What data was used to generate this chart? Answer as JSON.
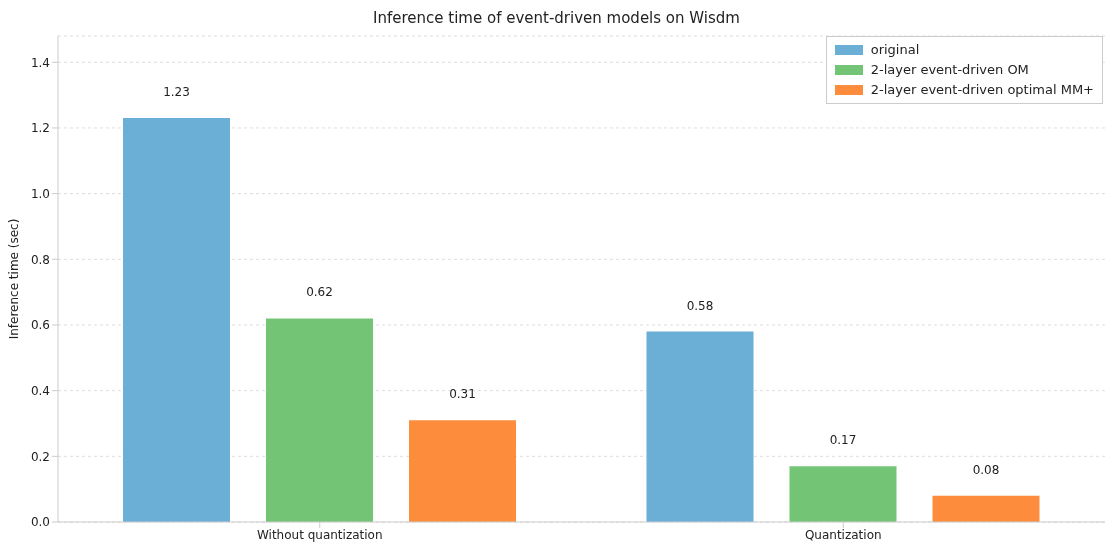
{
  "chart_data": {
    "type": "bar",
    "title": "Inference time of event-driven models on Wisdm",
    "ylabel": "Inference time (sec)",
    "categories": [
      "Without quantization",
      "Quantization"
    ],
    "series": [
      {
        "name": "original",
        "color": "#6baed6",
        "values": [
          1.23,
          0.58
        ]
      },
      {
        "name": "2-layer event-driven OM",
        "color": "#74c476",
        "values": [
          0.62,
          0.17
        ]
      },
      {
        "name": "2-layer event-driven optimal MM+",
        "color": "#fd8d3c",
        "values": [
          0.31,
          0.08
        ]
      }
    ],
    "ylim": [
      0,
      1.48
    ],
    "yticks": [
      {
        "value": 0,
        "label": "0.0"
      },
      0.2,
      0.4,
      0.6,
      0.8,
      {
        "value": 1,
        "label": "1.0"
      },
      1.2,
      1.4
    ],
    "grid": "y",
    "legend": "top right",
    "data_labels": true
  }
}
